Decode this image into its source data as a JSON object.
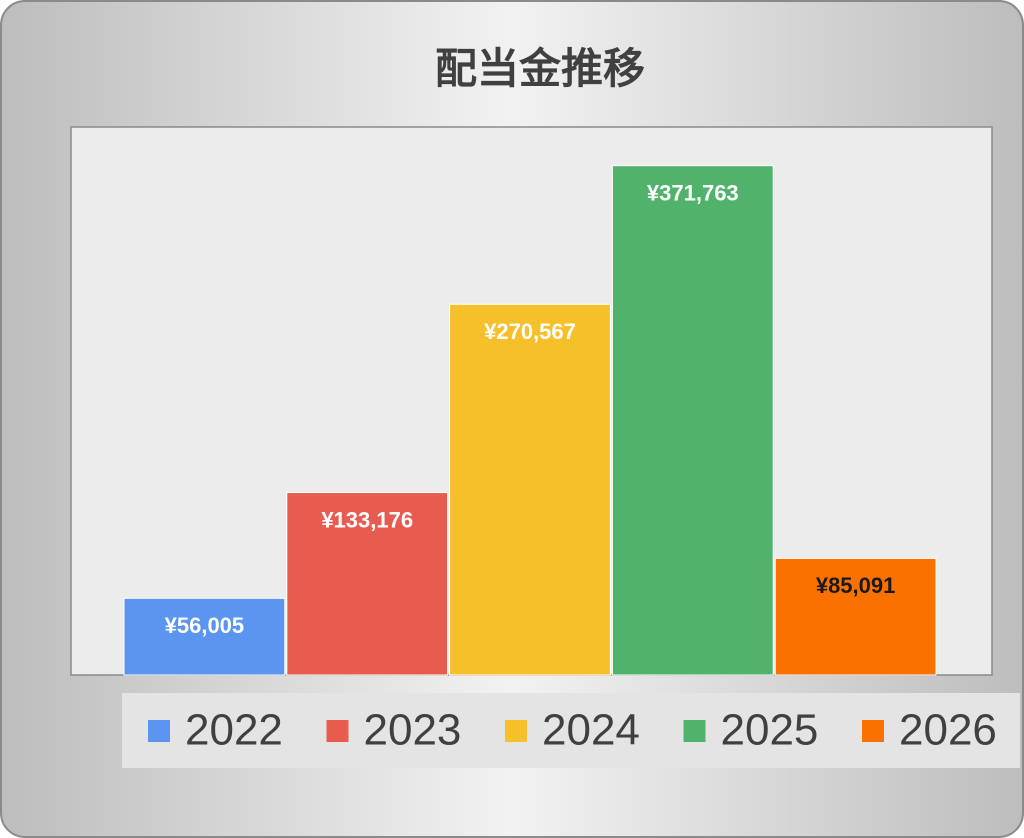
{
  "chart_data": {
    "type": "bar",
    "title": "配当金推移",
    "ylim": [
      0,
      400000
    ],
    "series": [
      {
        "name": "2022",
        "color": "#5b95ef",
        "label_color": "#ffffff",
        "values": [
          56005
        ],
        "value_labels": [
          "¥56,005"
        ]
      },
      {
        "name": "2023",
        "color": "#e85c50",
        "label_color": "#ffffff",
        "values": [
          133176
        ],
        "value_labels": [
          "¥133,176"
        ]
      },
      {
        "name": "2024",
        "color": "#f6c02b",
        "label_color": "#ffffff",
        "values": [
          270567
        ],
        "value_labels": [
          "¥270,567"
        ]
      },
      {
        "name": "2025",
        "color": "#51b36b",
        "label_color": "#ffffff",
        "values": [
          371763
        ],
        "value_labels": [
          "¥371,763"
        ]
      },
      {
        "name": "2026",
        "color": "#fb7100",
        "label_color": "#1a1a1a",
        "values": [
          85091
        ],
        "value_labels": [
          "¥85,091"
        ]
      }
    ]
  }
}
